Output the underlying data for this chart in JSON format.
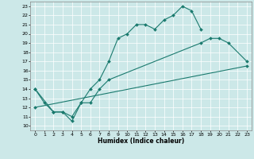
{
  "xlabel": "Humidex (Indice chaleur)",
  "xlim": [
    -0.5,
    23.5
  ],
  "ylim": [
    9.5,
    23.5
  ],
  "yticks": [
    10,
    11,
    12,
    13,
    14,
    15,
    16,
    17,
    18,
    19,
    20,
    21,
    22,
    23
  ],
  "xticks": [
    0,
    1,
    2,
    3,
    4,
    5,
    6,
    7,
    8,
    9,
    10,
    11,
    12,
    13,
    14,
    15,
    16,
    17,
    18,
    19,
    20,
    21,
    22,
    23
  ],
  "bg_color": "#cce8e8",
  "line_color": "#1a7a6e",
  "grid_color": "#ffffff",
  "series": [
    {
      "x": [
        0,
        1,
        2,
        3,
        4,
        5,
        6,
        7,
        8,
        9,
        10,
        11,
        12,
        13,
        14,
        15,
        16,
        17,
        18
      ],
      "y": [
        14.0,
        12.5,
        11.5,
        11.5,
        10.5,
        12.5,
        14.0,
        15.0,
        17.0,
        19.5,
        20.0,
        21.0,
        21.0,
        20.5,
        21.5,
        22.0,
        23.0,
        22.5,
        20.5
      ]
    },
    {
      "x": [
        0,
        2,
        3,
        4,
        5,
        6,
        7,
        8,
        18,
        19,
        20,
        21,
        23
      ],
      "y": [
        14.0,
        11.5,
        11.5,
        11.0,
        12.5,
        12.5,
        14.0,
        15.0,
        19.0,
        19.5,
        19.5,
        19.0,
        17.0
      ]
    },
    {
      "x": [
        0,
        23
      ],
      "y": [
        12.0,
        16.5
      ]
    }
  ]
}
